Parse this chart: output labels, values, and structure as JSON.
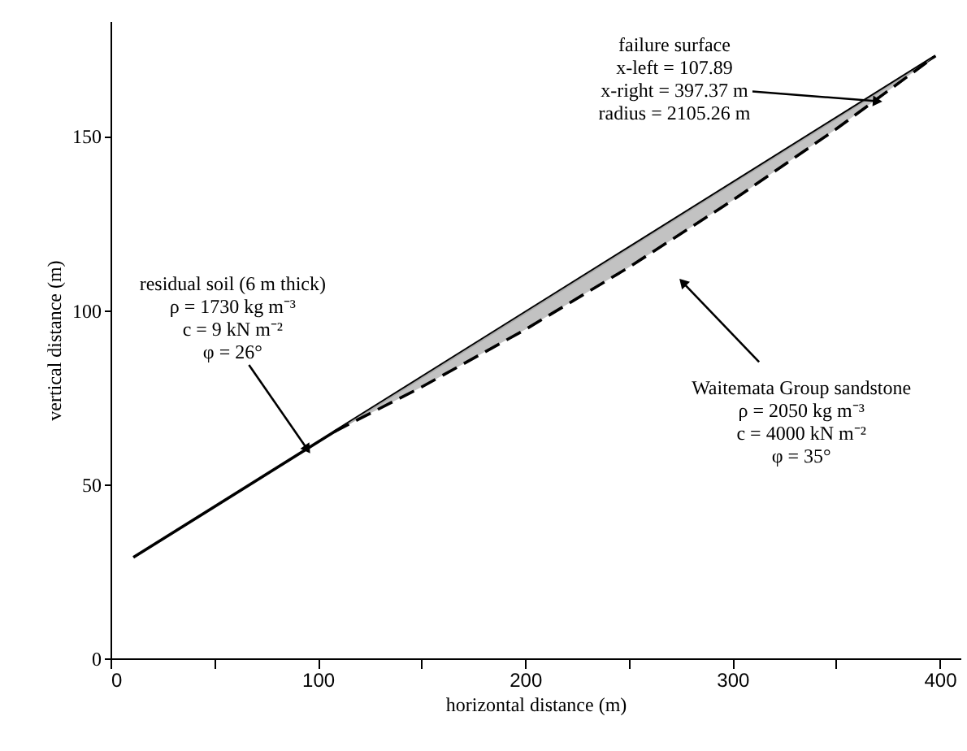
{
  "chart_data": {
    "type": "line",
    "xlabel": "horizontal distance (m)",
    "ylabel": "vertical distance (m)",
    "xlim": [
      0,
      410
    ],
    "ylim": [
      0,
      183
    ],
    "xticks": [
      0,
      {
        "value": 50,
        "label": null
      },
      100,
      {
        "value": 150,
        "label": null
      },
      200,
      {
        "value": 250,
        "label": null
      },
      300,
      {
        "value": 350,
        "label": null
      },
      400
    ],
    "yticks": [
      0,
      50,
      100,
      150
    ],
    "grid": false,
    "series": [
      {
        "color": "#000000",
        "line_style": "solid",
        "x": [
          11,
          398
        ],
        "values": [
          29,
          173
        ]
      },
      {
        "color": "#000000",
        "line_style": "dashed",
        "x": [
          108,
          150,
          200,
          250,
          300,
          350,
          397
        ],
        "values": [
          65.1,
          77.9,
          94.4,
          112.3,
          131.5,
          152.0,
          172.6
        ],
        "lower": [
          65.1,
          77.9,
          94.4,
          112.3,
          131.5,
          152.0,
          172.6
        ],
        "upper": [
          65.1,
          80.7,
          99.3,
          117.9,
          136.5,
          155.1,
          172.6
        ]
      }
    ],
    "annotations": [
      {
        "text": "residual soil (6 m thick)\nρ = 1730 kg m⁻³\nc = 9 kN m⁻²\nφ = 26°",
        "x": 95,
        "y": 60
      },
      {
        "text": "failure surface\nx-left = 107.89\nx-right = 397.37 m\nradius = 2105.26 m",
        "x": 370,
        "y": 160
      },
      {
        "text": "Waitemata Group sandstone\nρ = 2050 kg m⁻³\nc = 4000 kN m⁻²\nφ = 35°",
        "x": 276,
        "y": 108
      }
    ]
  }
}
